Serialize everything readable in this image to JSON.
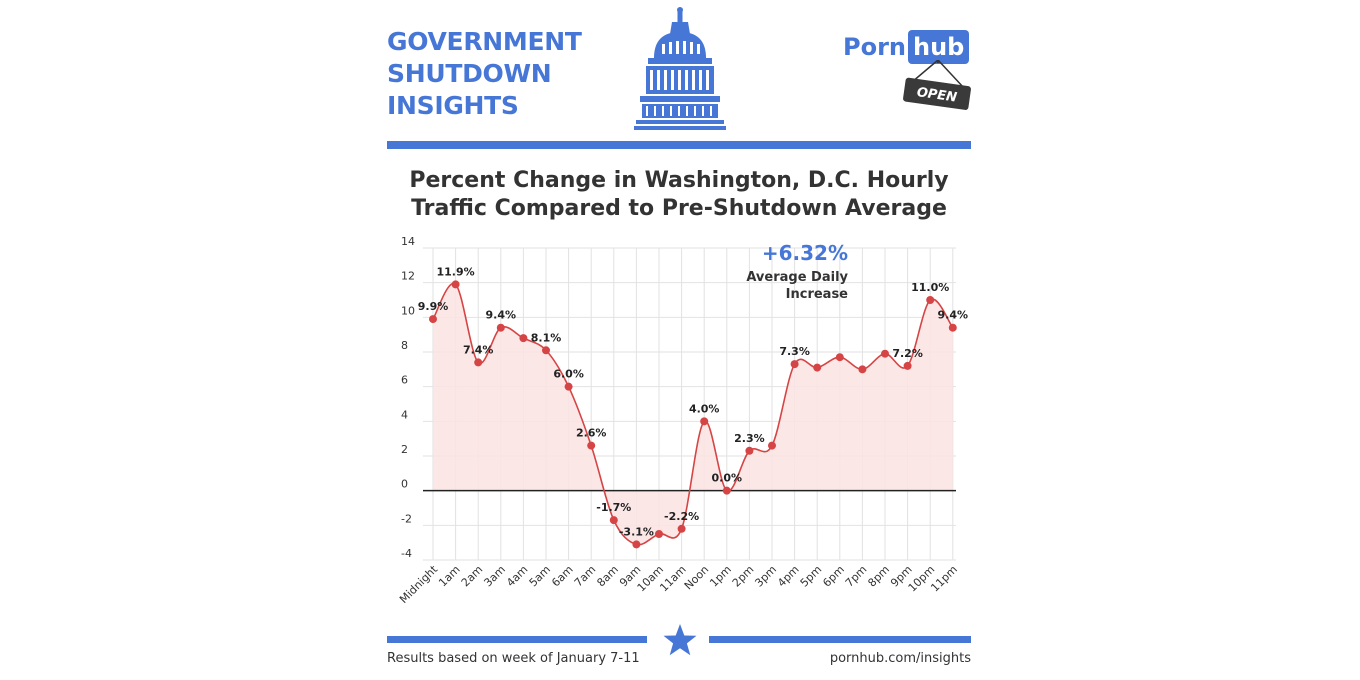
{
  "header": {
    "title_lines": [
      "GOVERNMENT",
      "SHUTDOWN",
      "INSIGHTS"
    ],
    "brand_part1": "Porn",
    "brand_part2": "hub",
    "sign_text": "OPEN"
  },
  "colors": {
    "accent": "#4676d6",
    "line": "#d64545",
    "fill": "#fbe3e3",
    "grid": "#e2e2e2",
    "zero_line": "#222222"
  },
  "icons": [
    "capitol-dome-icon",
    "open-sign-icon",
    "star-icon"
  ],
  "annotation": {
    "value": "+6.32%",
    "label_lines": [
      "Average Daily",
      "Increase"
    ]
  },
  "footer": {
    "note": "Results based on week of January 7-11",
    "source": "pornhub.com/insights"
  },
  "chart_data": {
    "type": "area",
    "title_lines": [
      "Percent Change in Washington, D.C. Hourly",
      "Traffic Compared to Pre-Shutdown Average"
    ],
    "xlabel": "",
    "ylabel": "",
    "categories": [
      "Midnight",
      "1am",
      "2am",
      "3am",
      "4am",
      "5am",
      "6am",
      "7am",
      "8am",
      "9am",
      "10am",
      "11am",
      "Noon",
      "1pm",
      "2pm",
      "3pm",
      "4pm",
      "5pm",
      "6pm",
      "7pm",
      "8pm",
      "9pm",
      "10pm",
      "11pm"
    ],
    "values": [
      9.9,
      11.9,
      7.4,
      9.4,
      8.8,
      8.1,
      6.0,
      2.6,
      -1.7,
      -3.1,
      -2.5,
      -2.2,
      4.0,
      0.0,
      2.3,
      2.6,
      7.3,
      7.1,
      7.7,
      7.0,
      7.9,
      7.2,
      11.0,
      9.4
    ],
    "data_labels": [
      "9.9%",
      "11.9%",
      "7.4%",
      "9.4%",
      null,
      "8.1%",
      "6.0%",
      "2.6%",
      "-1.7%",
      "-3.1%",
      null,
      "-2.2%",
      "4.0%",
      "0.0%",
      "2.3%",
      null,
      "7.3%",
      null,
      null,
      null,
      null,
      "7.2%",
      "11.0%",
      "9.4%"
    ],
    "yticks": [
      14,
      12,
      10,
      8,
      6,
      4,
      2,
      0,
      -2,
      -4
    ],
    "ylim": [
      -4,
      14
    ],
    "grid": true,
    "legend": "none"
  }
}
